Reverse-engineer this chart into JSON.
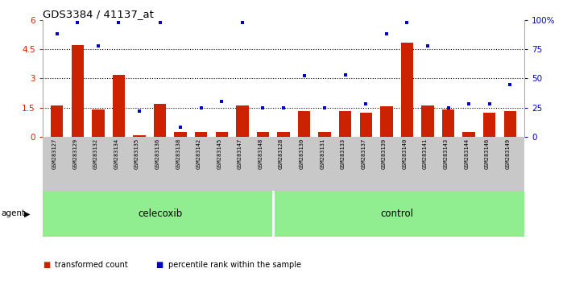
{
  "title": "GDS3384 / 41137_at",
  "samples": [
    "GSM283127",
    "GSM283129",
    "GSM283132",
    "GSM283134",
    "GSM283135",
    "GSM283136",
    "GSM283138",
    "GSM283142",
    "GSM283145",
    "GSM283147",
    "GSM283148",
    "GSM283128",
    "GSM283130",
    "GSM283131",
    "GSM283133",
    "GSM283137",
    "GSM283139",
    "GSM283140",
    "GSM283141",
    "GSM283143",
    "GSM283144",
    "GSM283146",
    "GSM283149"
  ],
  "transformed_count": [
    1.6,
    4.7,
    1.4,
    3.2,
    0.1,
    1.7,
    0.25,
    0.25,
    0.25,
    1.6,
    0.25,
    0.25,
    1.3,
    0.25,
    1.3,
    1.25,
    1.55,
    4.85,
    1.6,
    1.4,
    0.25,
    1.25,
    1.3
  ],
  "percentile_rank": [
    88,
    98,
    78,
    98,
    22,
    98,
    8,
    25,
    30,
    98,
    25,
    25,
    52,
    25,
    53,
    28,
    88,
    98,
    78,
    25,
    28,
    28,
    45
  ],
  "celecoxib_count": 11,
  "control_count": 12,
  "bar_color": "#cc2200",
  "dot_color": "#0000cc",
  "ylim_left": [
    0,
    6
  ],
  "ylim_right": [
    0,
    100
  ],
  "yticks_left": [
    0,
    1.5,
    3.0,
    4.5,
    6
  ],
  "yticks_right": [
    0,
    25,
    50,
    75,
    100
  ],
  "hlines": [
    1.5,
    3.0,
    4.5
  ],
  "celecoxib_label": "celecoxib",
  "control_label": "control",
  "agent_label": "agent",
  "legend_bar_label": "transformed count",
  "legend_dot_label": "percentile rank within the sample",
  "tick_bg_color": "#c8c8c8",
  "agent_bg": "#90EE90",
  "plot_bg": "#ffffff"
}
